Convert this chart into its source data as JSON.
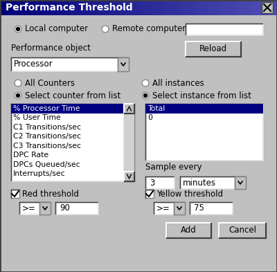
{
  "title": "Performance Threshold",
  "bg_color": "#c0c0c0",
  "title_text_color": "#ffffff",
  "text_color": "#000000",
  "list_selected_color": "#000080",
  "list_selected_text": "#ffffff",
  "list_bg": "#ffffff",
  "list_items": [
    "% Processor Time",
    "% User Time",
    "C1 Transitions/sec",
    "C2 Transitions/sec",
    "C3 Transitions/sec",
    "DPC Rate",
    "DPCs Queued/sec",
    "Interrupts/sec"
  ],
  "instance_items": [
    "Total",
    "0"
  ],
  "figsize": [
    4.0,
    3.93
  ],
  "dpi": 100
}
